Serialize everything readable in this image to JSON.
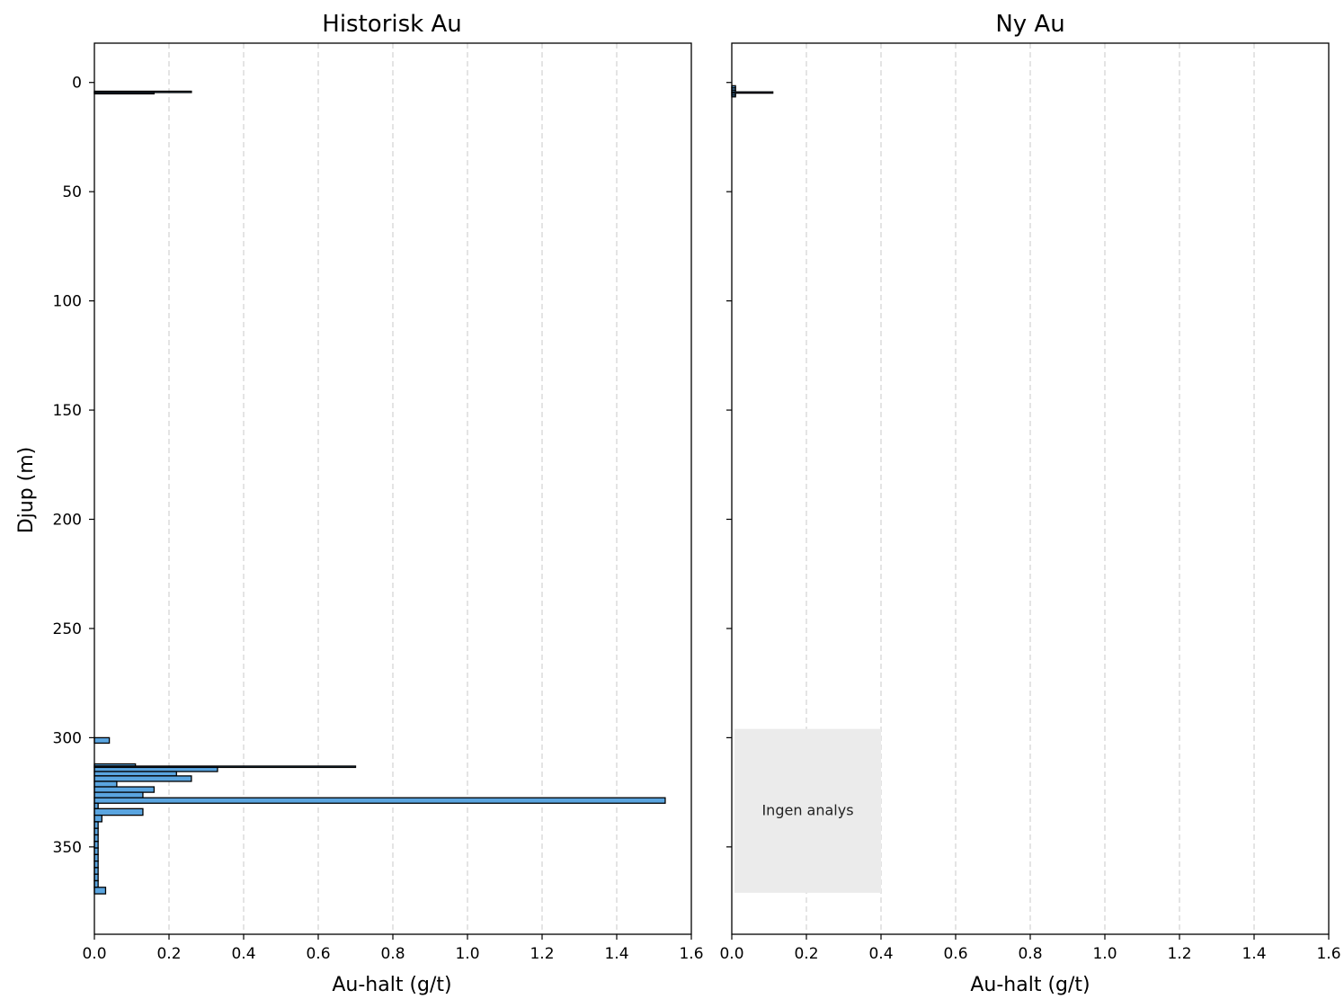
{
  "chart_data": [
    {
      "type": "bar",
      "orientation": "horizontal",
      "title": "Historisk Au",
      "xlabel": "Au-halt (g/t)",
      "ylabel": "Djup (m)",
      "xlim": [
        0.0,
        1.6
      ],
      "ylim": [
        390,
        -18
      ],
      "y_inverted": true,
      "grid": "x-dashed",
      "xticks": [
        "0.0",
        "0.2",
        "0.4",
        "0.6",
        "0.8",
        "1.0",
        "1.2",
        "1.4",
        "1.6"
      ],
      "yticks": [
        "0",
        "50",
        "100",
        "150",
        "200",
        "250",
        "300",
        "350"
      ],
      "bar_color": "#5aa5e0",
      "intervals": [
        {
          "from": 4.0,
          "to": 4.6,
          "value": 0.26
        },
        {
          "from": 4.6,
          "to": 5.2,
          "value": 0.16
        },
        {
          "from": 300.0,
          "to": 302.5,
          "value": 0.04
        },
        {
          "from": 312.0,
          "to": 313.0,
          "value": 0.11
        },
        {
          "from": 313.0,
          "to": 313.6,
          "value": 0.7
        },
        {
          "from": 313.6,
          "to": 315.5,
          "value": 0.33
        },
        {
          "from": 315.5,
          "to": 317.5,
          "value": 0.22
        },
        {
          "from": 317.5,
          "to": 320.0,
          "value": 0.26
        },
        {
          "from": 320.0,
          "to": 322.5,
          "value": 0.06
        },
        {
          "from": 322.5,
          "to": 325.0,
          "value": 0.16
        },
        {
          "from": 325.0,
          "to": 327.5,
          "value": 0.13
        },
        {
          "from": 327.5,
          "to": 330.0,
          "value": 1.53
        },
        {
          "from": 330.0,
          "to": 332.5,
          "value": 0.01
        },
        {
          "from": 332.5,
          "to": 335.5,
          "value": 0.13
        },
        {
          "from": 335.5,
          "to": 338.5,
          "value": 0.02
        },
        {
          "from": 338.5,
          "to": 341.5,
          "value": 0.01
        },
        {
          "from": 341.5,
          "to": 344.5,
          "value": 0.01
        },
        {
          "from": 344.5,
          "to": 347.5,
          "value": 0.01
        },
        {
          "from": 347.5,
          "to": 350.5,
          "value": 0.01
        },
        {
          "from": 350.5,
          "to": 353.5,
          "value": 0.01
        },
        {
          "from": 353.5,
          "to": 356.5,
          "value": 0.01
        },
        {
          "from": 356.5,
          "to": 359.5,
          "value": 0.01
        },
        {
          "from": 359.5,
          "to": 362.5,
          "value": 0.01
        },
        {
          "from": 362.5,
          "to": 365.5,
          "value": 0.01
        },
        {
          "from": 365.5,
          "to": 368.5,
          "value": 0.01
        },
        {
          "from": 368.5,
          "to": 371.5,
          "value": 0.03
        }
      ]
    },
    {
      "type": "bar",
      "orientation": "horizontal",
      "title": "Ny Au",
      "xlabel": "Au-halt (g/t)",
      "xlim": [
        0.0,
        1.6
      ],
      "ylim": [
        390,
        -18
      ],
      "y_inverted": true,
      "y_shared": true,
      "grid": "x-dashed",
      "xticks": [
        "0.0",
        "0.2",
        "0.4",
        "0.6",
        "0.8",
        "1.0",
        "1.2",
        "1.4",
        "1.6"
      ],
      "bar_color": "#5aa5e0",
      "intervals": [
        {
          "from": 1.5,
          "to": 2.5,
          "value": 0.01
        },
        {
          "from": 2.5,
          "to": 3.5,
          "value": 0.01
        },
        {
          "from": 3.5,
          "to": 4.3,
          "value": 0.01
        },
        {
          "from": 4.3,
          "to": 4.9,
          "value": 0.11
        },
        {
          "from": 4.9,
          "to": 5.8,
          "value": 0.01
        },
        {
          "from": 5.8,
          "to": 6.6,
          "value": 0.01
        }
      ],
      "annotation": {
        "text": "Ingen analys",
        "depth_from": 296,
        "depth_to": 371,
        "x_from": 0.0,
        "x_to": 0.4
      }
    }
  ]
}
